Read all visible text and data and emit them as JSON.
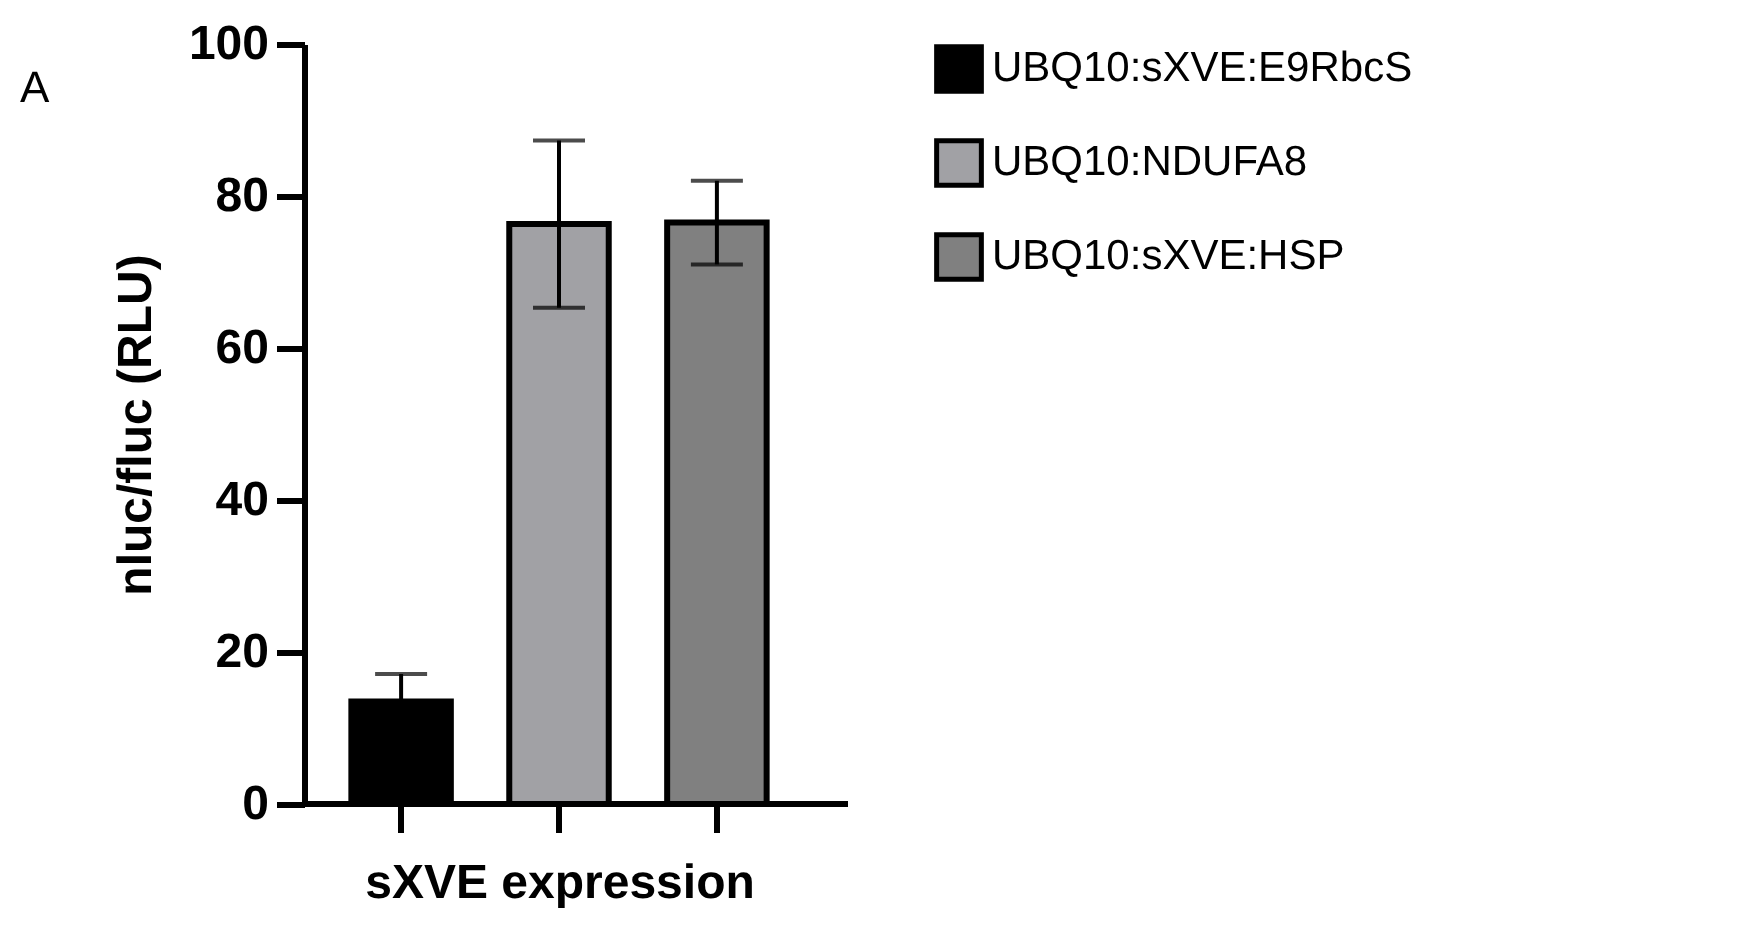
{
  "chart_data": {
    "type": "bar",
    "xlabel": "sXVE expression",
    "ylabel": "nluc/fluc (RLU)",
    "annotations": [
      "A"
    ],
    "categories": [
      null,
      null,
      null
    ],
    "series": [
      {
        "name": "UBQ10:sXVE:E9RbcS",
        "color": "#000000",
        "values": [
          13.5,
          null,
          null
        ],
        "errors": [
          3.6,
          null,
          null
        ]
      },
      {
        "name": "UBQ10:NDUFA8",
        "color": "#a1a1a5",
        "values": [
          null,
          76.3,
          null
        ],
        "errors": [
          null,
          11,
          null
        ]
      },
      {
        "name": "UBQ10:sXVE:HSP",
        "color": "#808080",
        "values": [
          null,
          null,
          76.5
        ],
        "errors": [
          null,
          null,
          5.5
        ]
      }
    ],
    "ylim": [
      0,
      100
    ],
    "yticks": [
      0,
      20,
      40,
      60,
      80,
      100
    ],
    "grid": false,
    "legend": "right"
  }
}
